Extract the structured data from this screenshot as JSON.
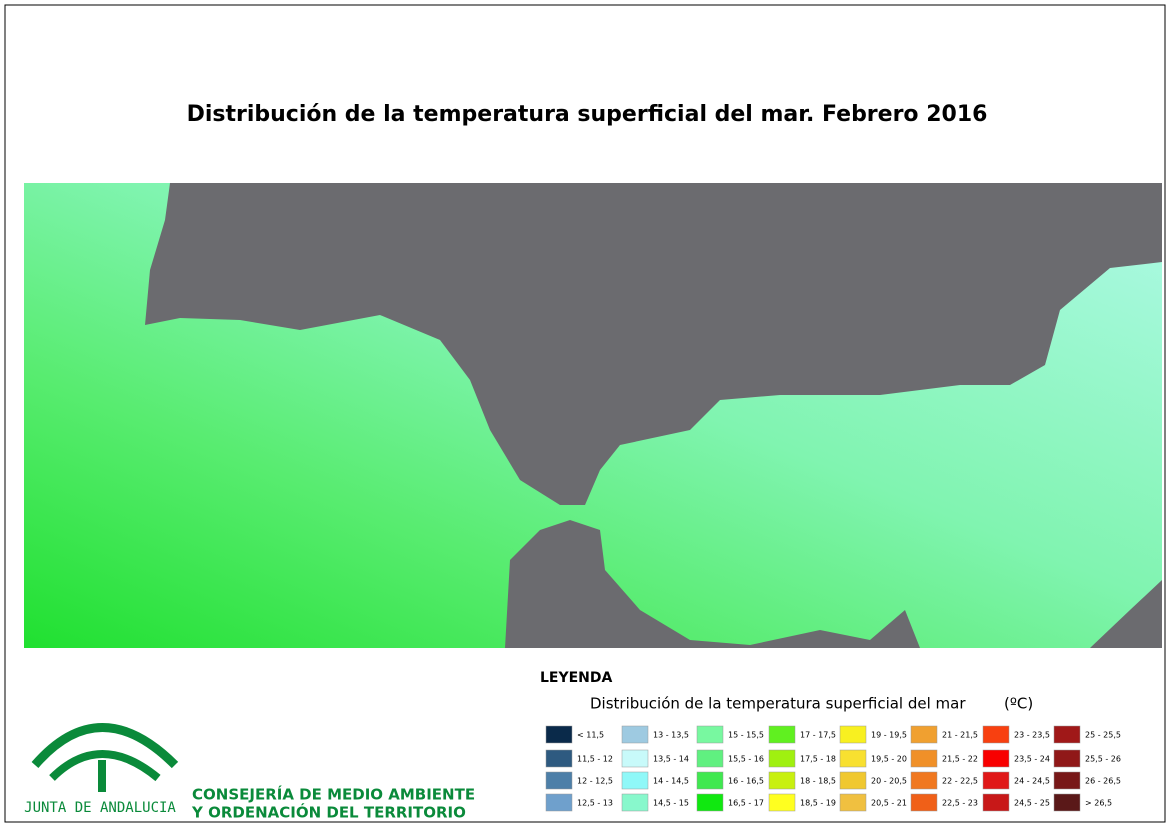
{
  "title": "Distribución de la temperatura superficial del mar. Febrero 2016",
  "legend": {
    "heading": "LEYENDA",
    "subtitle": "Distribución de la temperatura superficial del mar",
    "unit": "(ºC)",
    "items": [
      {
        "label": "< 11,5",
        "color": "#0a2a4a"
      },
      {
        "label": "11,5 - 12",
        "color": "#2e5a80"
      },
      {
        "label": "12 - 12,5",
        "color": "#4d7fa8"
      },
      {
        "label": "12,5 - 13",
        "color": "#6fa0cc"
      },
      {
        "label": "13 - 13,5",
        "color": "#9ecae1"
      },
      {
        "label": "13,5 - 14",
        "color": "#c8fafa"
      },
      {
        "label": "14 - 14,5",
        "color": "#8ff8f8"
      },
      {
        "label": "14,5 - 15",
        "color": "#88f8cc"
      },
      {
        "label": "15 - 15,5",
        "color": "#78f8a0"
      },
      {
        "label": "15,5 - 16",
        "color": "#60f080"
      },
      {
        "label": "16 - 16,5",
        "color": "#40e850"
      },
      {
        "label": "16,5 - 17",
        "color": "#10e810"
      },
      {
        "label": "17 - 17,5",
        "color": "#60f020"
      },
      {
        "label": "17,5 - 18",
        "color": "#a0f010"
      },
      {
        "label": "18 - 18,5",
        "color": "#c8f010"
      },
      {
        "label": "18,5 - 19",
        "color": "#ffff20"
      },
      {
        "label": "19 - 19,5",
        "color": "#f8f020"
      },
      {
        "label": "19,5 - 20",
        "color": "#f8e030"
      },
      {
        "label": "20 - 20,5",
        "color": "#f0c830"
      },
      {
        "label": "20,5 - 21",
        "color": "#f0c040"
      },
      {
        "label": "21 - 21,5",
        "color": "#f0a030"
      },
      {
        "label": "21,5 - 22",
        "color": "#f09028"
      },
      {
        "label": "22 - 22,5",
        "color": "#f07820"
      },
      {
        "label": "22,5 - 23",
        "color": "#f06018"
      },
      {
        "label": "23 - 23,5",
        "color": "#f84010"
      },
      {
        "label": "23,5 - 24",
        "color": "#f80000"
      },
      {
        "label": "24 - 24,5",
        "color": "#e01818"
      },
      {
        "label": "24,5 - 25",
        "color": "#c81818"
      },
      {
        "label": "25 - 25,5",
        "color": "#a01818"
      },
      {
        "label": "25,5 - 26",
        "color": "#901818"
      },
      {
        "label": "26 - 26,5",
        "color": "#781818"
      },
      {
        "label": "> 26,5",
        "color": "#5a1818"
      }
    ]
  },
  "logo": {
    "name": "JUNTA DE ANDALUCIA",
    "line1": "CONSEJERÍA DE MEDIO AMBIENTE",
    "line2": "Y ORDENACIÓN DEL TERRITORIO"
  }
}
